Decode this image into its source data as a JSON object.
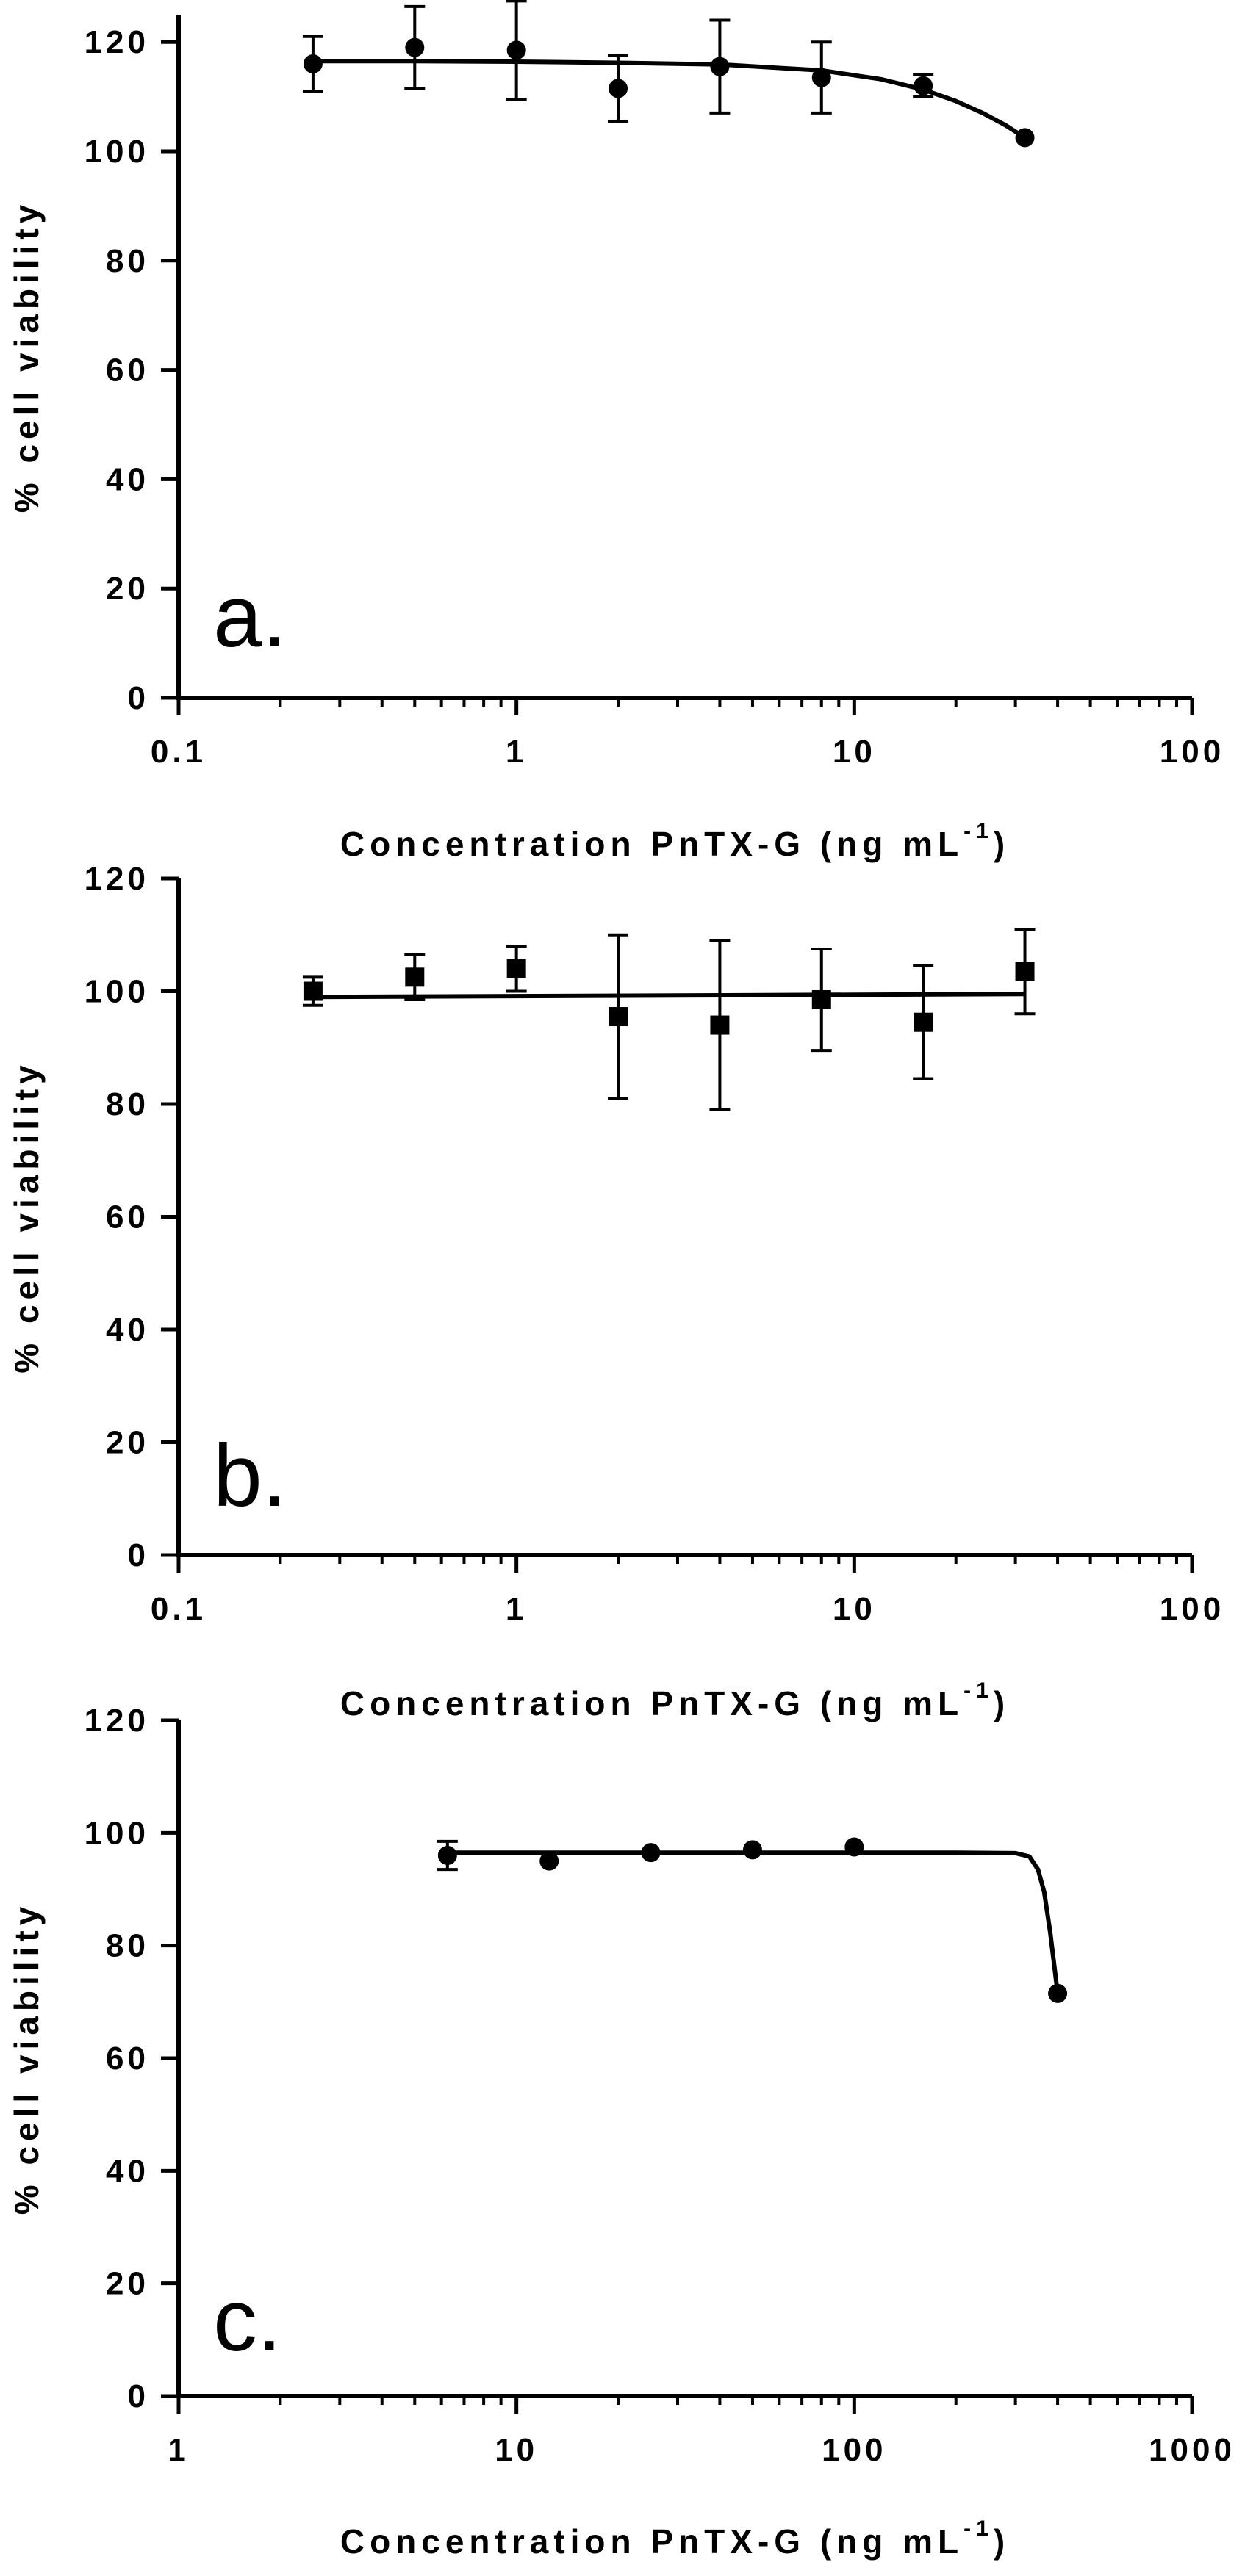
{
  "chart_data": [
    {
      "type": "scatter",
      "panel_label": "a.",
      "xlabel": "Concentration PnTX-G (ng mL",
      "xlabel_sup": "-1",
      "xlabel_close": ")",
      "ylabel": "% cell viability",
      "xscale": "log",
      "xlim": [
        0.1,
        100
      ],
      "ylim": [
        0,
        125
      ],
      "xticks": [
        0.1,
        1,
        10,
        100
      ],
      "xtick_labels": [
        "0.1",
        "1",
        "10",
        "100"
      ],
      "yticks": [
        0,
        20,
        40,
        60,
        80,
        100,
        120
      ],
      "ytick_labels": [
        "0",
        "20",
        "40",
        "60",
        "80",
        "100",
        "120"
      ],
      "marker": "circle",
      "series": [
        {
          "name": "PnTX-G",
          "x": [
            0.25,
            0.5,
            1,
            2,
            4,
            8,
            16,
            32
          ],
          "y": [
            116,
            119,
            118.5,
            111.5,
            115.5,
            113.5,
            112,
            102.5
          ],
          "error": [
            5,
            7.5,
            9,
            6,
            8.5,
            6.5,
            2,
            0
          ]
        }
      ],
      "fit": {
        "x": [
          0.25,
          0.5,
          1,
          2,
          4,
          8,
          12,
          16,
          20,
          24,
          28,
          32
        ],
        "y": [
          116.5,
          116.5,
          116.4,
          116.2,
          115.9,
          114.8,
          113.2,
          111.3,
          109.2,
          107,
          104.8,
          102.5
        ]
      }
    },
    {
      "type": "scatter",
      "panel_label": "b.",
      "xlabel": "Concentration PnTX-G (ng mL",
      "xlabel_sup": "-1",
      "xlabel_close": ")",
      "ylabel": "% cell viability",
      "xscale": "log",
      "xlim": [
        0.1,
        100
      ],
      "ylim": [
        0,
        120
      ],
      "xticks": [
        0.1,
        1,
        10,
        100
      ],
      "xtick_labels": [
        "0.1",
        "1",
        "10",
        "100"
      ],
      "yticks": [
        0,
        20,
        40,
        60,
        80,
        100,
        120
      ],
      "ytick_labels": [
        "0",
        "20",
        "40",
        "60",
        "80",
        "100",
        "120"
      ],
      "marker": "square",
      "series": [
        {
          "name": "PnTX-G",
          "x": [
            0.25,
            0.5,
            1,
            2,
            4,
            8,
            16,
            32
          ],
          "y": [
            100,
            102.5,
            104,
            95.5,
            94,
            98.5,
            94.5,
            103.5
          ],
          "error": [
            2.5,
            4,
            4,
            14.5,
            15,
            9,
            10,
            7.5
          ]
        }
      ],
      "fit": {
        "x": [
          0.25,
          32
        ],
        "y": [
          99,
          99.5
        ]
      }
    },
    {
      "type": "scatter",
      "panel_label": "c.",
      "xlabel": "Concentration PnTX-G (ng mL",
      "xlabel_sup": "-1",
      "xlabel_close": ")",
      "ylabel": "% cell viability",
      "xscale": "log",
      "xlim": [
        1,
        1000
      ],
      "ylim": [
        0,
        120
      ],
      "xticks": [
        1,
        10,
        100,
        1000
      ],
      "xtick_labels": [
        "1",
        "10",
        "100",
        "1000"
      ],
      "yticks": [
        0,
        20,
        40,
        60,
        80,
        100,
        120
      ],
      "ytick_labels": [
        "0",
        "20",
        "40",
        "60",
        "80",
        "100",
        "120"
      ],
      "marker": "circle",
      "series": [
        {
          "name": "PnTX-G",
          "x": [
            6.25,
            12.5,
            25,
            50,
            100,
            400
          ],
          "y": [
            96,
            95,
            96.5,
            97,
            97.5,
            71.5
          ],
          "error": [
            2.5,
            0,
            0,
            0,
            0,
            0
          ]
        }
      ],
      "fit": {
        "x": [
          6.25,
          50,
          200,
          300,
          330,
          350,
          365,
          380,
          390,
          400
        ],
        "y": [
          96.5,
          96.5,
          96.5,
          96.4,
          95.8,
          93.5,
          89.5,
          82.5,
          77,
          71.5
        ]
      }
    }
  ]
}
